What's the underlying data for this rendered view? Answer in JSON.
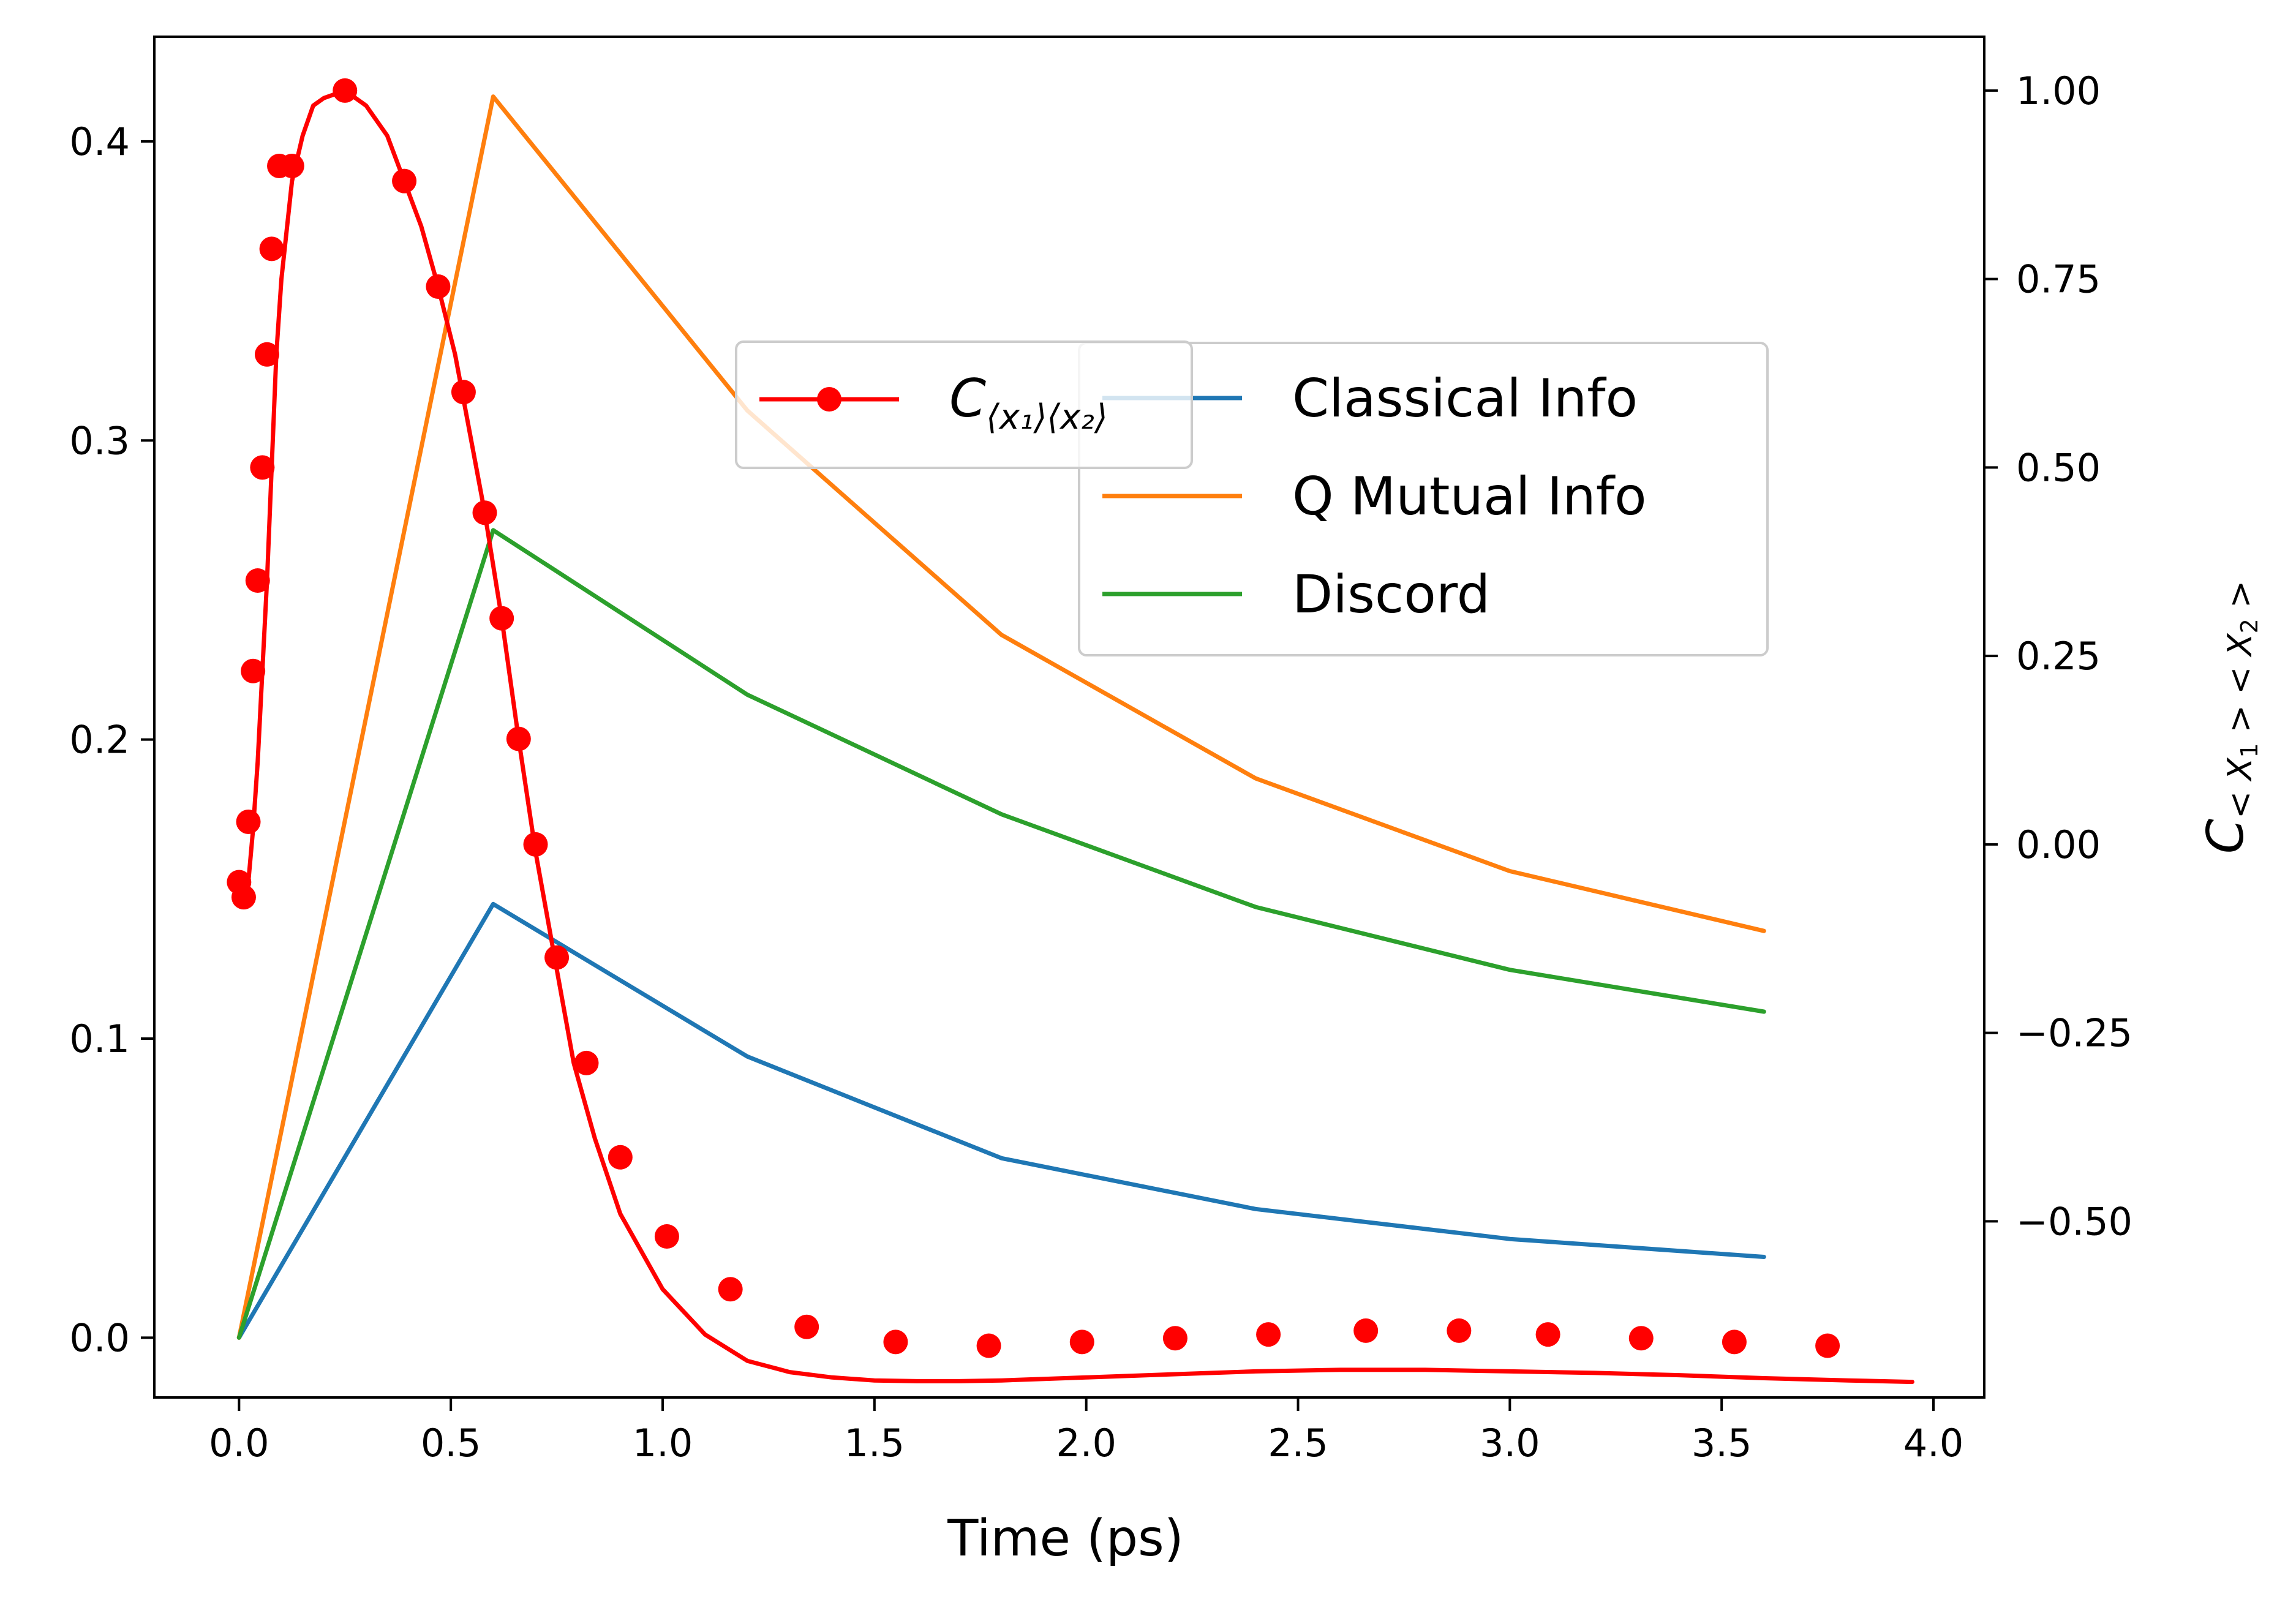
{
  "chart_data": {
    "type": "line",
    "xlabel": "Time (ps)",
    "ylabel": "",
    "ylabel_right": {
      "main": "C",
      "sub1": "< X",
      "sub1_idx": "1",
      "sub2": " > < X",
      "sub2_idx": "2",
      "close": " >"
    },
    "xlim": [
      -0.2,
      4.12
    ],
    "ylim": [
      -0.02,
      0.435
    ],
    "ylim_right": [
      -0.7336,
      1.0714
    ],
    "x_ticks": [
      "0.0",
      "0.5",
      "1.0",
      "1.5",
      "2.0",
      "2.5",
      "3.0",
      "3.5",
      "4.0"
    ],
    "x_tick_values": [
      0.0,
      0.5,
      1.0,
      1.5,
      2.0,
      2.5,
      3.0,
      3.5,
      4.0
    ],
    "y_ticks": [
      "0.0",
      "0.1",
      "0.2",
      "0.3",
      "0.4"
    ],
    "y_tick_values": [
      0.0,
      0.1,
      0.2,
      0.3,
      0.4
    ],
    "y_ticks_right": [
      "−0.50",
      "−0.25",
      "0.00",
      "0.25",
      "0.50",
      "0.75",
      "1.00"
    ],
    "y_tick_values_right": [
      -0.5,
      -0.25,
      0.0,
      0.25,
      0.5,
      0.75,
      1.0
    ],
    "grid": false,
    "series": [
      {
        "name": "Classical Info",
        "color": "#1f77b4",
        "axis": "left",
        "x": [
          0.0,
          0.6,
          1.2,
          1.8,
          2.4,
          3.0,
          3.6
        ],
        "y": [
          0.0,
          0.145,
          0.094,
          0.06,
          0.043,
          0.033,
          0.027
        ]
      },
      {
        "name": "Q Mutual Info",
        "color": "#ff7f0e",
        "axis": "left",
        "x": [
          0.0,
          0.6,
          1.2,
          1.8,
          2.4,
          3.0,
          3.6
        ],
        "y": [
          0.0,
          0.415,
          0.31,
          0.235,
          0.187,
          0.156,
          0.136
        ]
      },
      {
        "name": "Discord",
        "color": "#2ca02c",
        "axis": "left",
        "x": [
          0.0,
          0.6,
          1.2,
          1.8,
          2.4,
          3.0,
          3.6
        ],
        "y": [
          0.0,
          0.27,
          0.215,
          0.175,
          0.144,
          0.123,
          0.109
        ]
      },
      {
        "name_main": "C",
        "name_sub": "⟨x₁⟩⟨x₂⟩",
        "color": "#ff0000",
        "axis": "right",
        "marker": "circle",
        "x": [
          0.0,
          0.011,
          0.022,
          0.033,
          0.044,
          0.055,
          0.066,
          0.077,
          0.088,
          0.1,
          0.125,
          0.15,
          0.175,
          0.2,
          0.25,
          0.3,
          0.35,
          0.39,
          0.43,
          0.47,
          0.51,
          0.55,
          0.58,
          0.62,
          0.66,
          0.7,
          0.745,
          0.79,
          0.84,
          0.9,
          1.0,
          1.1,
          1.2,
          1.3,
          1.4,
          1.5,
          1.6,
          1.7,
          1.8,
          1.9,
          2.0,
          2.2,
          2.4,
          2.6,
          2.8,
          3.0,
          3.2,
          3.4,
          3.6,
          3.8,
          3.95
        ],
        "y": [
          -0.05,
          -0.07,
          -0.05,
          0.02,
          0.11,
          0.23,
          0.35,
          0.5,
          0.65,
          0.75,
          0.88,
          0.94,
          0.98,
          0.99,
          1.0,
          0.98,
          0.94,
          0.88,
          0.82,
          0.74,
          0.65,
          0.53,
          0.44,
          0.3,
          0.14,
          -0.01,
          -0.15,
          -0.29,
          -0.39,
          -0.49,
          -0.59,
          -0.65,
          -0.685,
          -0.7,
          -0.707,
          -0.711,
          -0.712,
          -0.712,
          -0.711,
          -0.709,
          -0.707,
          -0.703,
          -0.699,
          -0.697,
          -0.697,
          -0.699,
          -0.701,
          -0.704,
          -0.708,
          -0.711,
          -0.713
        ],
        "marker_x": [
          0.0,
          0.011,
          0.022,
          0.033,
          0.044,
          0.055,
          0.066,
          0.077,
          0.095,
          0.125,
          0.25,
          0.39,
          0.47,
          0.53,
          0.58,
          0.62,
          0.66,
          0.7,
          0.75,
          0.82,
          0.9,
          1.01,
          1.16,
          1.34,
          1.55,
          1.77,
          1.99,
          2.21,
          2.43,
          2.66,
          2.88,
          3.09,
          3.31,
          3.53,
          3.75
        ],
        "marker_y": [
          -0.05,
          -0.07,
          0.03,
          0.23,
          0.35,
          0.5,
          0.65,
          0.79,
          0.9,
          0.9,
          1.0,
          0.88,
          0.74,
          0.6,
          0.44,
          0.3,
          0.14,
          0.0,
          -0.15,
          -0.29,
          -0.415,
          -0.52,
          -0.59,
          -0.64,
          -0.66,
          -0.665,
          -0.66,
          -0.655,
          -0.65,
          -0.645,
          -0.645,
          -0.65,
          -0.655,
          -0.66,
          -0.665
        ]
      }
    ],
    "legend_placement": "center-right"
  }
}
